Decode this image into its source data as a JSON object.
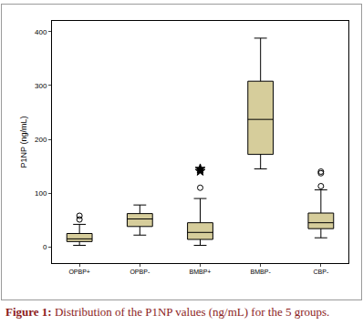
{
  "chart_data": {
    "type": "box",
    "caption": {
      "label": "Figure 1:",
      "text": "Distribution of the P1NP values (ng/mL) for the 5 groups."
    },
    "y_label": "P1NP (ng/mL)",
    "categories": [
      "OPBP+",
      "OPBP-",
      "BMBP+",
      "BMBP-",
      "CBP-"
    ],
    "series": [
      {
        "type": "box",
        "color": "#d6cd9b",
        "lowerfence": [
          3,
          22,
          3,
          145,
          17
        ],
        "q1": [
          10,
          38,
          14,
          172,
          34
        ],
        "median": [
          15,
          52,
          27,
          237,
          45
        ],
        "q3": [
          25,
          62,
          45,
          308,
          63
        ],
        "upperfence": [
          42,
          78,
          90,
          388,
          106
        ]
      },
      {
        "type": "scatter",
        "marker": "circle-open",
        "values": [
          [
            51,
            58
          ],
          [],
          [
            110
          ],
          [],
          [
            113,
            137,
            140
          ]
        ]
      },
      {
        "type": "scatter",
        "marker": "star",
        "values": [
          [],
          [],
          [
            141,
            145
          ],
          [],
          []
        ]
      }
    ],
    "ylim": [
      -30,
      420
    ],
    "yticks": [
      0,
      100,
      200,
      300,
      400
    ],
    "grid": false
  }
}
